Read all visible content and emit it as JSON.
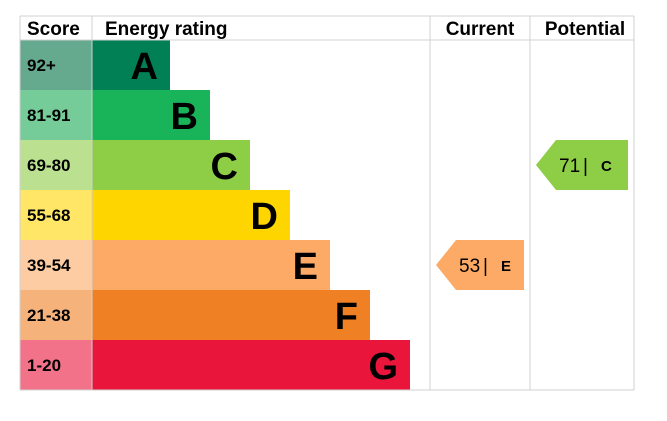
{
  "chart_data": {
    "type": "bar",
    "headers": {
      "score": "Score",
      "rating": "Energy rating",
      "current": "Current",
      "potential": "Potential"
    },
    "bands": [
      {
        "letter": "A",
        "range": "92+",
        "color": "#008054",
        "score_color": "#65a98f"
      },
      {
        "letter": "B",
        "range": "81-91",
        "color": "#19b459",
        "score_color": "#75cc98"
      },
      {
        "letter": "C",
        "range": "69-80",
        "color": "#8dce46",
        "score_color": "#bbe190"
      },
      {
        "letter": "D",
        "range": "55-68",
        "color": "#ffd500",
        "score_color": "#ffe666"
      },
      {
        "letter": "E",
        "range": "39-54",
        "color": "#fcaa65",
        "score_color": "#fdcca3"
      },
      {
        "letter": "F",
        "range": "21-38",
        "color": "#ef8023",
        "score_color": "#f5b37b"
      },
      {
        "letter": "G",
        "range": "1-20",
        "color": "#e9153b",
        "score_color": "#f27389"
      }
    ],
    "current": {
      "value": 53,
      "value_text": "53",
      "separator": "|",
      "letter": "E",
      "color": "#fcaa65"
    },
    "potential": {
      "value": 71,
      "value_text": "71",
      "separator": "|",
      "letter": "C",
      "color": "#8dce46"
    }
  }
}
